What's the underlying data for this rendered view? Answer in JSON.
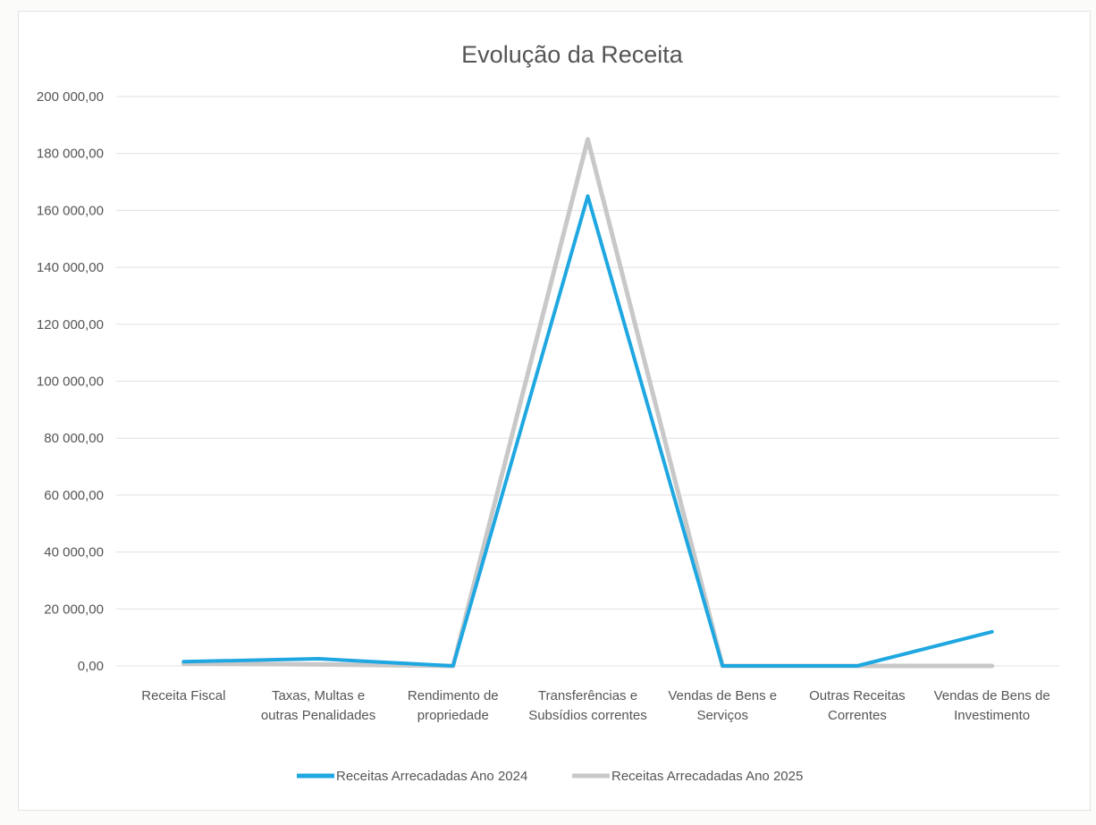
{
  "chart_data": {
    "type": "line",
    "title": "Evolução da Receita",
    "xlabel": "",
    "ylabel": "",
    "categories": [
      [
        "Receita Fiscal"
      ],
      [
        "Taxas, Multas e",
        "outras Penalidades"
      ],
      [
        "Rendimento de",
        "propriedade"
      ],
      [
        "Transferências e",
        "Subsídios correntes"
      ],
      [
        "Vendas de Bens e",
        "Serviços"
      ],
      [
        "Outras Receitas",
        "Correntes"
      ],
      [
        "Vendas de Bens de",
        "Investimento"
      ]
    ],
    "yticks": [
      "0,00",
      "20 000,00",
      "40 000,00",
      "60 000,00",
      "80 000,00",
      "100 000,00",
      "120 000,00",
      "140 000,00",
      "160 000,00",
      "180 000,00",
      "200 000,00"
    ],
    "ylim": [
      0,
      200000
    ],
    "grid": true,
    "legend_position": "bottom",
    "series": [
      {
        "name": "Receitas Arrecadadas Ano 2024",
        "color": "#1ea7e1",
        "values": [
          1500,
          2500,
          0,
          165000,
          0,
          0,
          12000
        ]
      },
      {
        "name": "Receitas Arrecadadas Ano 2025",
        "color": "#c8c8c8",
        "values": [
          800,
          500,
          0,
          185000,
          0,
          0,
          0
        ]
      }
    ]
  }
}
